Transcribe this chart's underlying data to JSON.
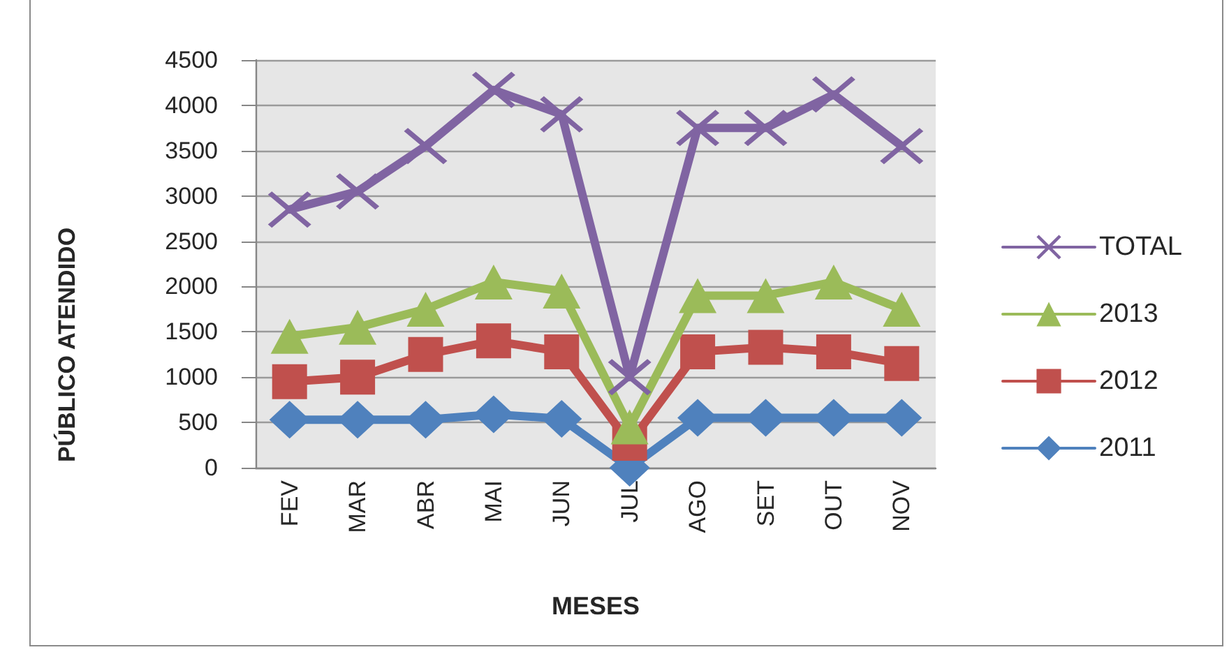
{
  "chart_data": {
    "type": "line",
    "xlabel": "MESES",
    "ylabel": "PÚBLICO ATENDIDO",
    "categories": [
      "FEV",
      "MAR",
      "ABR",
      "MAI",
      "JUN",
      "JUL",
      "AGO",
      "SET",
      "OUT",
      "NOV"
    ],
    "series": [
      {
        "name": "TOTAL",
        "color": "#8064a2",
        "marker": "cross",
        "values": [
          2850,
          3050,
          3550,
          4170,
          3900,
          1000,
          3750,
          3750,
          4120,
          3550
        ]
      },
      {
        "name": "2013",
        "color": "#9bbb59",
        "marker": "triangle",
        "values": [
          1450,
          1550,
          1750,
          2050,
          1950,
          450,
          1900,
          1900,
          2050,
          1750
        ]
      },
      {
        "name": "2012",
        "color": "#c0504d",
        "marker": "square",
        "values": [
          950,
          1000,
          1250,
          1400,
          1280,
          270,
          1280,
          1330,
          1280,
          1150
        ]
      },
      {
        "name": "2011",
        "color": "#4f81bd",
        "marker": "diamond",
        "values": [
          530,
          530,
          530,
          590,
          540,
          0,
          550,
          550,
          550,
          550
        ]
      }
    ],
    "ylim": [
      0,
      4500
    ],
    "yticks": [
      0,
      500,
      1000,
      1500,
      2000,
      2500,
      3000,
      3500,
      4000,
      4500
    ],
    "grid": "y",
    "legend": "right"
  }
}
